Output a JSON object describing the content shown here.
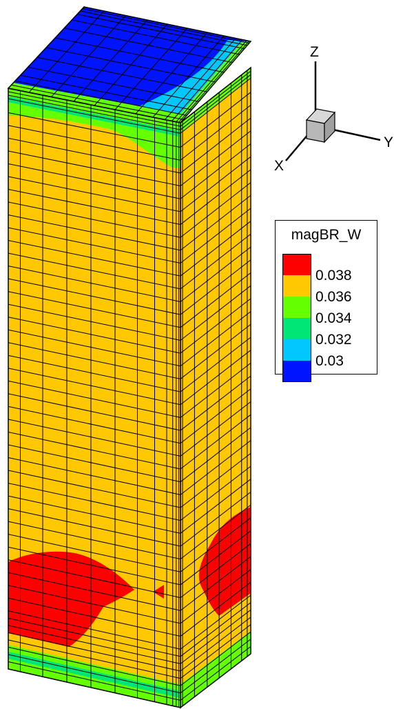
{
  "axes_triad": {
    "x_label": "X",
    "y_label": "Y",
    "z_label": "Z"
  },
  "legend": {
    "title": "magBR_W",
    "levels": [
      {
        "value": "0.038",
        "color": "#ff0000"
      },
      {
        "value": "0.036",
        "color": "#ffc800"
      },
      {
        "value": "0.034",
        "color": "#64ff00"
      },
      {
        "value": "0.032",
        "color": "#00e676"
      },
      {
        "value": "0.03",
        "color": "#00c8ff"
      },
      {
        "value": "",
        "color": "#0014ff"
      }
    ]
  },
  "colors": {
    "top_face": "#0014ff",
    "body": "#ffc800",
    "band_green": "#64ff00",
    "band_cyan": "#00c8ff",
    "hotspot": "#ff0000",
    "mesh_line": "#000000"
  }
}
